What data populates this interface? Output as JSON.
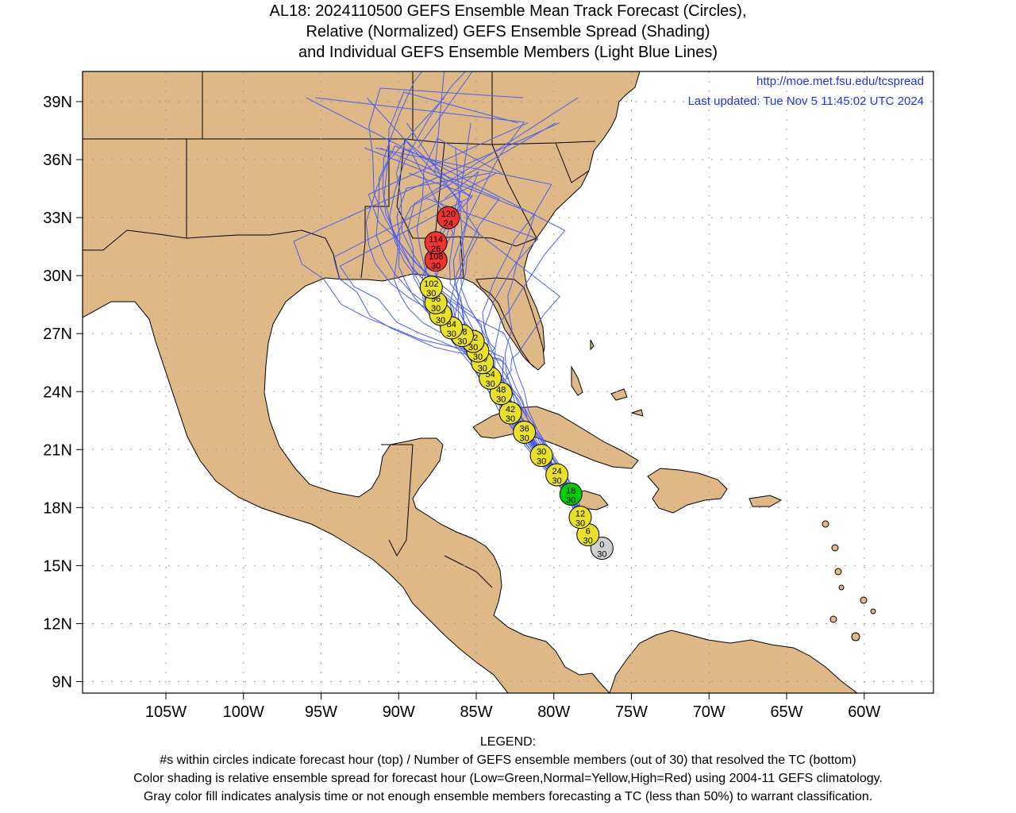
{
  "title": {
    "line1": "AL18: 2024110500 GEFS Ensemble Mean Track Forecast (Circles),",
    "line2": "Relative (Normalized) GEFS Ensemble Spread (Shading)",
    "line3": "and Individual GEFS Ensemble Members (Light Blue Lines)"
  },
  "credit": {
    "url": "http://moe.met.fsu.edu/tcspread",
    "updated": "Last updated: Tue Nov 5 11:45:02 UTC 2024"
  },
  "axes": {
    "lat_labels": [
      "39N",
      "36N",
      "33N",
      "30N",
      "27N",
      "24N",
      "21N",
      "18N",
      "15N",
      "12N",
      "9N"
    ],
    "lon_labels": [
      "105W",
      "100W",
      "95W",
      "90W",
      "85W",
      "80W",
      "75W",
      "70W",
      "65W",
      "60W"
    ]
  },
  "colors": {
    "land": "#deb887",
    "ocean": "#ffffff",
    "member_tracks": "#4a5ff0",
    "low_spread": "#00cc00",
    "normal_spread": "#e8e02a",
    "high_spread": "#ee3333",
    "analysis": "#d0d0d0"
  },
  "track": [
    {
      "hour": "0",
      "members": "30",
      "spread": "gray",
      "lon": -76.9,
      "lat": 15.9
    },
    {
      "hour": "6",
      "members": "30",
      "spread": "normal",
      "lon": -77.8,
      "lat": 16.6
    },
    {
      "hour": "12",
      "members": "30",
      "spread": "normal",
      "lon": -78.3,
      "lat": 17.5
    },
    {
      "hour": "18",
      "members": "30",
      "spread": "low",
      "lon": -78.9,
      "lat": 18.7
    },
    {
      "hour": "24",
      "members": "30",
      "spread": "normal",
      "lon": -79.8,
      "lat": 19.7
    },
    {
      "hour": "30",
      "members": "30",
      "spread": "normal",
      "lon": -80.8,
      "lat": 20.7
    },
    {
      "hour": "36",
      "members": "30",
      "spread": "normal",
      "lon": -81.9,
      "lat": 21.9
    },
    {
      "hour": "42",
      "members": "30",
      "spread": "normal",
      "lon": -82.8,
      "lat": 22.9
    },
    {
      "hour": "48",
      "members": "30",
      "spread": "normal",
      "lon": -83.4,
      "lat": 23.9
    },
    {
      "hour": "54",
      "members": "30",
      "spread": "normal",
      "lon": -84.1,
      "lat": 24.7
    },
    {
      "hour": "60",
      "members": "30",
      "spread": "normal",
      "lon": -84.6,
      "lat": 25.5
    },
    {
      "hour": "66",
      "members": "30",
      "spread": "normal",
      "lon": -84.9,
      "lat": 26.1
    },
    {
      "hour": "72",
      "members": "30",
      "spread": "normal",
      "lon": -85.2,
      "lat": 26.6
    },
    {
      "hour": "78",
      "members": "30",
      "spread": "normal",
      "lon": -85.9,
      "lat": 26.9
    },
    {
      "hour": "84",
      "members": "30",
      "spread": "normal",
      "lon": -86.6,
      "lat": 27.3
    },
    {
      "hour": "90",
      "members": "30",
      "spread": "normal",
      "lon": -87.3,
      "lat": 28.0
    },
    {
      "hour": "96",
      "members": "30",
      "spread": "normal",
      "lon": -87.6,
      "lat": 28.6
    },
    {
      "hour": "102",
      "members": "30",
      "spread": "normal",
      "lon": -87.9,
      "lat": 29.4
    },
    {
      "hour": "108",
      "members": "30",
      "spread": "high",
      "lon": -87.6,
      "lat": 30.8
    },
    {
      "hour": "114",
      "members": "26",
      "spread": "high",
      "lon": -87.6,
      "lat": 31.7
    },
    {
      "hour": "120",
      "members": "24",
      "spread": "high",
      "lon": -86.8,
      "lat": 33.0
    }
  ],
  "legend": {
    "heading": "LEGEND:",
    "line1": "#s within circles indicate forecast hour (top) / Number of GEFS ensemble members (out of 30) that resolved the TC (bottom)",
    "line2": "Color shading is relative ensemble spread for forecast hour (Low=Green,Normal=Yellow,High=Red) using 2004-11 GEFS climatology.",
    "line3": "Gray color fill indicates analysis time or not enough ensemble members forecasting a TC (less than 50%) to warrant classification."
  }
}
